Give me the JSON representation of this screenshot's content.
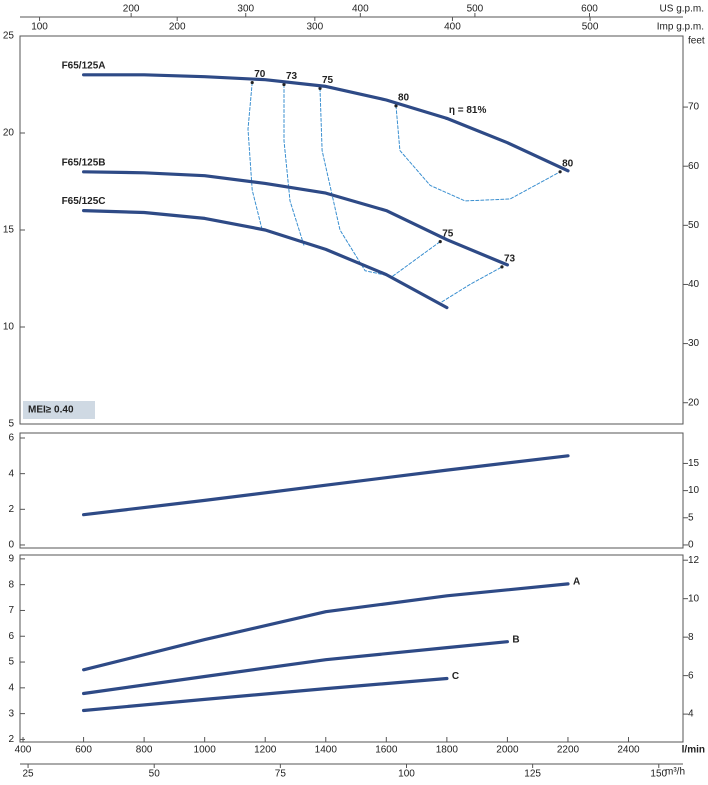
{
  "chart_data": [
    {
      "type": "line",
      "badge": "MEI≥ 0.40",
      "top_axes": [
        {
          "label": "US g.p.m.",
          "lim": [
            103.0,
            681.6
          ],
          "ticks": [
            200,
            300,
            400,
            500,
            600
          ]
        },
        {
          "label": "Imp g.p.m.",
          "lim": [
            85.8,
            567.5
          ],
          "ticks": [
            100,
            200,
            300,
            400,
            500
          ]
        }
      ],
      "ylim": [
        5,
        25
      ],
      "yticks": [
        5,
        10,
        15,
        20,
        25
      ],
      "y2label": "feet",
      "y2lim": [
        16.4,
        82.02
      ],
      "y2ticks": [
        20,
        30,
        40,
        50,
        60,
        70
      ],
      "color": "#2e4a86",
      "series": [
        {
          "name": "F65/125A",
          "x": [
            600,
            800,
            1000,
            1200,
            1400,
            1600,
            1800,
            2000,
            2200
          ],
          "values": [
            23.0,
            23.0,
            22.9,
            22.75,
            22.4,
            21.7,
            20.75,
            19.5,
            18.05
          ]
        },
        {
          "name": "F65/125B",
          "x": [
            600,
            800,
            1000,
            1200,
            1400,
            1600,
            1800,
            2000
          ],
          "values": [
            18.0,
            17.95,
            17.8,
            17.4,
            16.9,
            16.0,
            14.5,
            13.2
          ]
        },
        {
          "name": "F65/125C",
          "x": [
            600,
            800,
            1000,
            1200,
            1400,
            1600,
            1800
          ],
          "values": [
            16.0,
            15.9,
            15.6,
            15.0,
            14.0,
            12.7,
            11.0
          ]
        }
      ],
      "efficiency_color": "#3a8fd0",
      "efficiency_curves": [
        {
          "x": [
            1157,
            1143,
            1157,
            1190
          ],
          "values": [
            22.6,
            20.2,
            17.06,
            15.0
          ]
        },
        {
          "x": [
            1262,
            1262,
            1282,
            1328
          ],
          "values": [
            22.5,
            19.6,
            16.5,
            14.2
          ]
        },
        {
          "x": [
            1381,
            1388,
            1447,
            1530,
            1619,
            1778
          ],
          "values": [
            22.3,
            19.1,
            15.0,
            12.9,
            12.6,
            14.4
          ]
        },
        {
          "x": [
            1784,
            1877,
            1982
          ],
          "values": [
            11.3,
            12.2,
            13.1
          ]
        },
        {
          "x": [
            1632,
            1645,
            1745,
            1860,
            2009,
            2174
          ],
          "values": [
            21.4,
            19.1,
            17.3,
            16.5,
            16.6,
            18.0
          ]
        }
      ],
      "efficiency_labels": [
        {
          "label": "70",
          "x": 1157,
          "y": 22.6
        },
        {
          "label": "73",
          "x": 1262,
          "y": 22.5
        },
        {
          "label": "75",
          "x": 1381,
          "y": 22.3
        },
        {
          "label": "80",
          "x": 1632,
          "y": 21.4
        },
        {
          "label": "η = 81%",
          "x": 1800,
          "y": 20.75
        },
        {
          "label": "80",
          "x": 2174,
          "y": 18.0
        },
        {
          "label": "75",
          "x": 1778,
          "y": 14.4
        },
        {
          "label": "73",
          "x": 1982,
          "y": 13.1
        }
      ]
    },
    {
      "type": "line",
      "ylim": [
        -0.17,
        6.28
      ],
      "yticks": [
        0,
        2,
        4,
        6
      ],
      "y2lim": [
        -0.56,
        20.6
      ],
      "y2ticks": [
        0,
        5,
        10,
        15
      ],
      "color": "#2e4a86",
      "series": [
        {
          "x": [
            600,
            1000,
            1400,
            1800,
            2200
          ],
          "values": [
            1.7,
            2.5,
            3.35,
            4.2,
            5.0
          ]
        }
      ]
    },
    {
      "type": "line",
      "xlabel": "l/min",
      "xlim": [
        390,
        2580
      ],
      "xticks": [
        400,
        600,
        800,
        1000,
        1200,
        1400,
        1600,
        1800,
        2000,
        2200,
        2400
      ],
      "x2label": "m³/h",
      "x2lim": [
        23.4,
        154.8
      ],
      "x2ticks": [
        25,
        50,
        75,
        100,
        125,
        150
      ],
      "ylim": [
        1.9,
        9.15
      ],
      "yticks": [
        2,
        3,
        4,
        5,
        6,
        7,
        8,
        9
      ],
      "y2lim": [
        2.55,
        12.27
      ],
      "y2ticks": [
        4,
        6,
        8,
        10,
        12
      ],
      "color": "#2e4a86",
      "series": [
        {
          "name": "A",
          "x": [
            600,
            1000,
            1400,
            1800,
            2200
          ],
          "values": [
            4.7,
            5.87,
            6.95,
            7.57,
            8.03
          ]
        },
        {
          "name": "B",
          "x": [
            600,
            1000,
            1400,
            1800,
            2000
          ],
          "values": [
            3.78,
            4.44,
            5.09,
            5.56,
            5.79
          ]
        },
        {
          "name": "C",
          "x": [
            600,
            1000,
            1400,
            1800
          ],
          "values": [
            3.12,
            3.55,
            3.97,
            4.36
          ]
        }
      ]
    }
  ]
}
